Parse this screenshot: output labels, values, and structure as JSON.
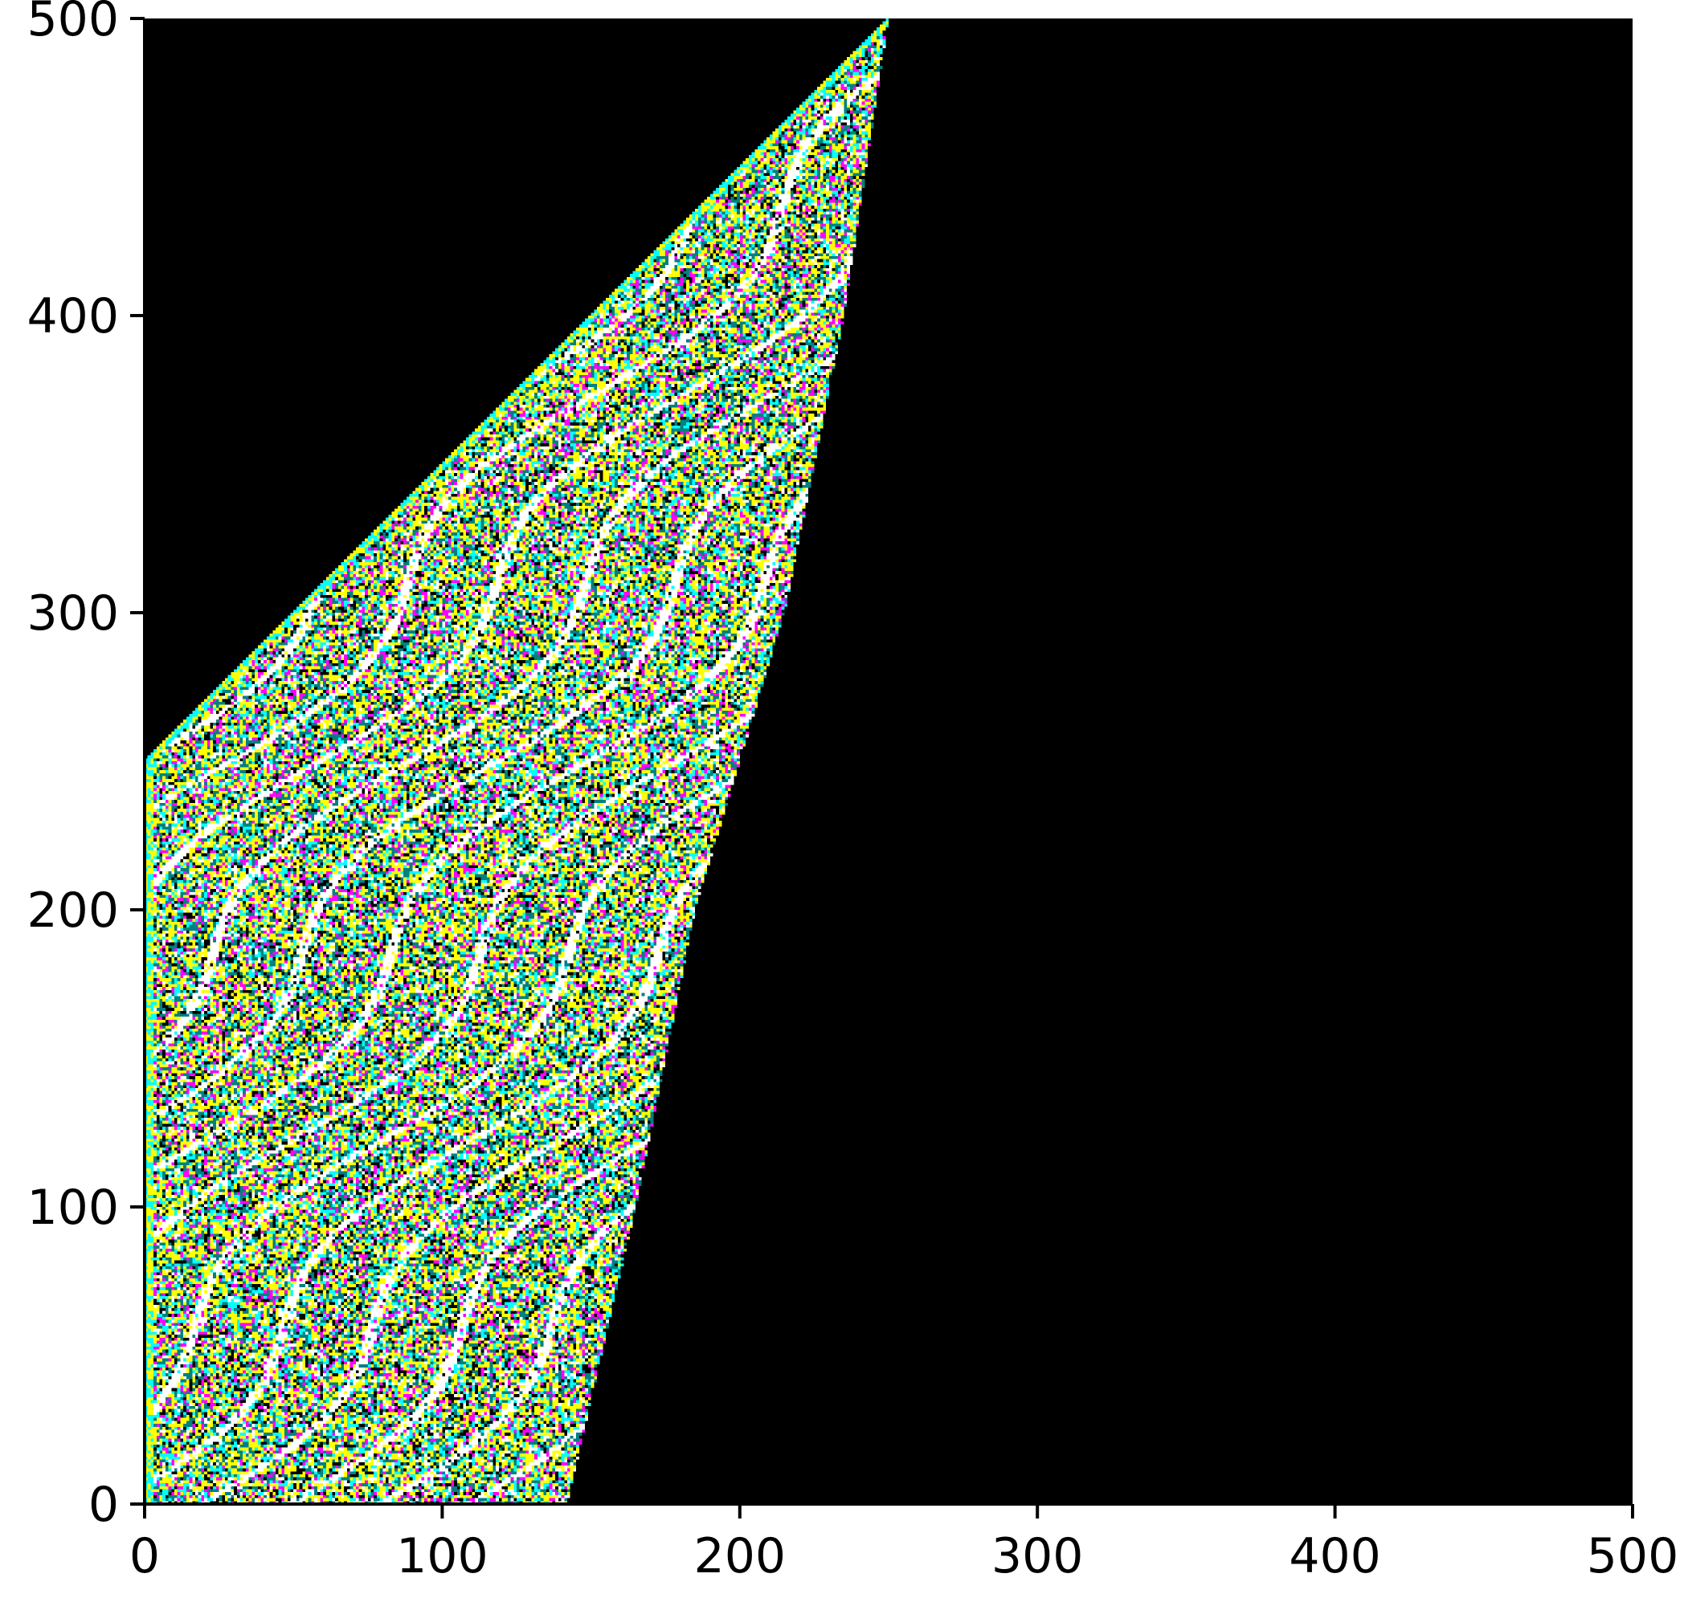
{
  "chart_data": {
    "type": "heatmap",
    "title": "",
    "xlabel": "",
    "ylabel": "",
    "xlim": [
      0,
      500
    ],
    "ylim": [
      0,
      500
    ],
    "xticks": [
      0,
      100,
      200,
      300,
      400,
      500
    ],
    "yticks": [
      0,
      100,
      200,
      300,
      400,
      500
    ],
    "grid": false,
    "legend": "none",
    "background_color": "#000000",
    "palette": [
      "#000000",
      "#ffffff",
      "#ffff00",
      "#00ffff",
      "#ff00ff",
      "#008080"
    ],
    "active_region": {
      "left_edge": [
        [
          0,
          0
        ],
        [
          0,
          250
        ],
        [
          250,
          500
        ]
      ],
      "right_edge": [
        [
          142,
          0
        ],
        [
          165,
          100
        ],
        [
          185,
          200
        ],
        [
          215,
          300
        ],
        [
          235,
          400
        ],
        [
          250,
          500
        ]
      ]
    }
  }
}
